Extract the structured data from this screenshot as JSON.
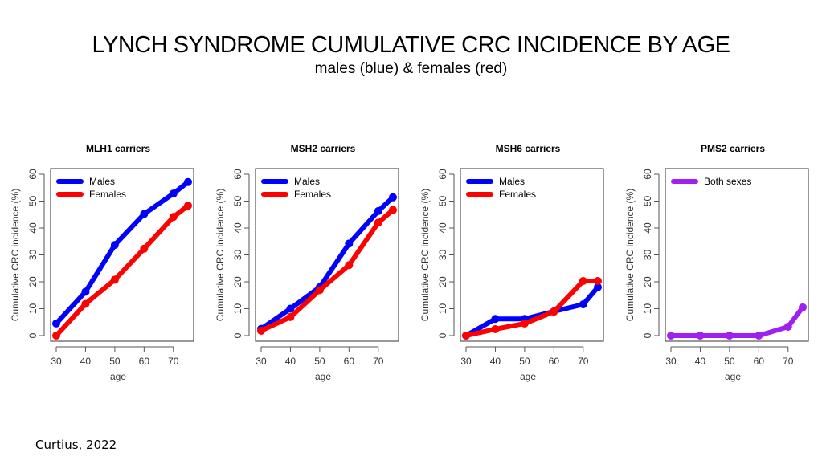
{
  "title": "LYNCH SYNDROME CUMULATIVE CRC INCIDENCE BY AGE",
  "subtitle": "males (blue) & females (red)",
  "source": "Curtius, 2022",
  "colors": {
    "males": "#0000ff",
    "females": "#ff0000",
    "both": "#a020f0",
    "axis": "#555555"
  },
  "chart_data": [
    {
      "type": "line",
      "title": "MLH1 carriers",
      "xlabel": "age",
      "ylabel": "Cumulative CRC incidence (%)",
      "xlim": [
        30,
        75
      ],
      "ylim": [
        0,
        60
      ],
      "xticks": [
        30,
        40,
        50,
        60,
        70
      ],
      "yticks": [
        0,
        10,
        20,
        30,
        40,
        50,
        60
      ],
      "legend": "top-left",
      "x": [
        30,
        40,
        50,
        60,
        70,
        75
      ],
      "series": [
        {
          "name": "Males",
          "color": "#0000ff",
          "values": [
            4.5,
            16.3,
            33.7,
            45.2,
            52.8,
            57.1
          ]
        },
        {
          "name": "Females",
          "color": "#ff0000",
          "values": [
            0.0,
            11.8,
            20.8,
            32.3,
            44.1,
            48.3
          ]
        }
      ]
    },
    {
      "type": "line",
      "title": "MSH2 carriers",
      "xlabel": "age",
      "ylabel": "Cumulative CRC incidence (%)",
      "xlim": [
        30,
        75
      ],
      "ylim": [
        0,
        60
      ],
      "xticks": [
        30,
        40,
        50,
        60,
        70
      ],
      "yticks": [
        0,
        10,
        20,
        30,
        40,
        50,
        60
      ],
      "legend": "top-left",
      "x": [
        30,
        40,
        50,
        60,
        70,
        75
      ],
      "series": [
        {
          "name": "Males",
          "color": "#0000ff",
          "values": [
            2.5,
            10.0,
            18.0,
            34.2,
            46.3,
            51.4
          ]
        },
        {
          "name": "Females",
          "color": "#ff0000",
          "values": [
            1.8,
            6.9,
            16.9,
            26.2,
            42.0,
            46.7
          ]
        }
      ]
    },
    {
      "type": "line",
      "title": "MSH6 carriers",
      "xlabel": "age",
      "ylabel": "Cumulative CRC incidence (%)",
      "xlim": [
        30,
        75
      ],
      "ylim": [
        0,
        60
      ],
      "xticks": [
        30,
        40,
        50,
        60,
        70
      ],
      "yticks": [
        0,
        10,
        20,
        30,
        40,
        50,
        60
      ],
      "legend": "top-left",
      "x": [
        30,
        40,
        50,
        60,
        70,
        75
      ],
      "series": [
        {
          "name": "Males",
          "color": "#0000ff",
          "values": [
            0.0,
            6.2,
            6.2,
            9.0,
            11.6,
            18.0
          ]
        },
        {
          "name": "Females",
          "color": "#ff0000",
          "values": [
            0.0,
            2.4,
            4.5,
            8.9,
            20.3,
            20.3
          ]
        }
      ]
    },
    {
      "type": "line",
      "title": "PMS2 carriers",
      "xlabel": "age",
      "ylabel": "Cumulative CRC incidence (%)",
      "xlim": [
        30,
        75
      ],
      "ylim": [
        0,
        60
      ],
      "xticks": [
        30,
        40,
        50,
        60,
        70
      ],
      "yticks": [
        0,
        10,
        20,
        30,
        40,
        50,
        60
      ],
      "legend": "top-left",
      "x": [
        30,
        40,
        50,
        60,
        70,
        75
      ],
      "series": [
        {
          "name": "Both sexes",
          "color": "#a020f0",
          "values": [
            0.0,
            0.0,
            0.0,
            0.0,
            3.3,
            10.5
          ]
        }
      ]
    }
  ]
}
